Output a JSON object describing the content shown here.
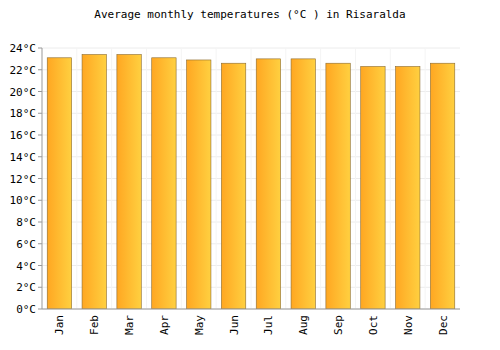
{
  "chart_data": {
    "type": "bar",
    "title": "Average monthly temperatures (°C ) in Risaralda",
    "categories": [
      "Jan",
      "Feb",
      "Mar",
      "Apr",
      "May",
      "Jun",
      "Jul",
      "Aug",
      "Sep",
      "Oct",
      "Nov",
      "Dec"
    ],
    "values": [
      23.1,
      23.4,
      23.4,
      23.1,
      22.9,
      22.6,
      23.0,
      23.0,
      22.6,
      22.3,
      22.3,
      22.6
    ],
    "color": "#ffa722",
    "ylim": [
      0,
      24
    ],
    "yticks": [
      {
        "value": 0,
        "label": "0°C"
      },
      {
        "value": 2,
        "label": "2°C"
      },
      {
        "value": 4,
        "label": "4°C"
      },
      {
        "value": 6,
        "label": "6°C"
      },
      {
        "value": 8,
        "label": "8°C"
      },
      {
        "value": 10,
        "label": "10°C"
      },
      {
        "value": 12,
        "label": "12°C"
      },
      {
        "value": 14,
        "label": "14°C"
      },
      {
        "value": 16,
        "label": "16°C"
      },
      {
        "value": 18,
        "label": "18°C"
      },
      {
        "value": 20,
        "label": "20°C"
      },
      {
        "value": 22,
        "label": "22°C"
      },
      {
        "value": 24,
        "label": "24°C"
      }
    ],
    "grid": true
  }
}
